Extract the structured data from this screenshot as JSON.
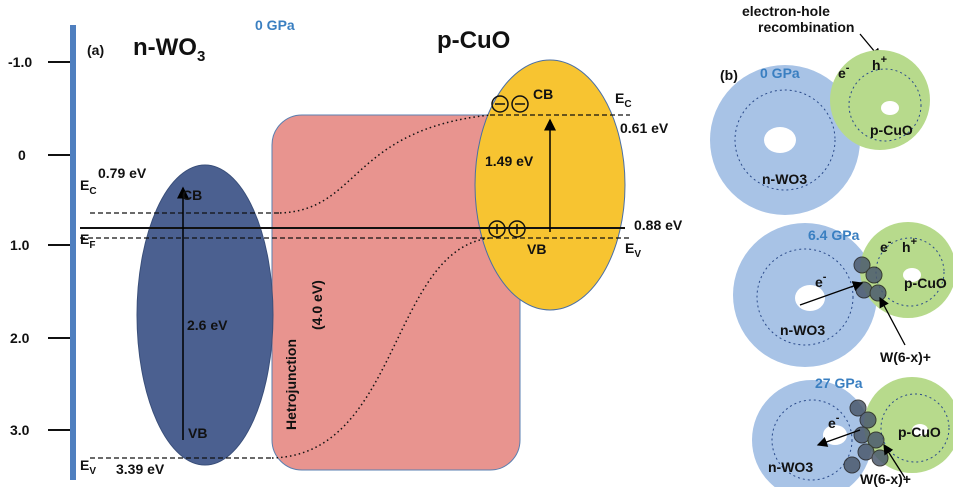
{
  "panel_a": {
    "label": "(a)",
    "pressure": "0 GPa",
    "energy_axis": {
      "ticks": [
        "-1.0",
        "0",
        "1.0",
        "2.0",
        "3.0"
      ]
    },
    "wo3": {
      "name": {
        "main": "n-WO",
        "sub": "3"
      },
      "cb": "CB",
      "vb": "VB",
      "gap": "2.6 eV",
      "ec": {
        "main": "E",
        "sub": "C"
      },
      "ec_value": "0.79 eV",
      "ef": {
        "main": "E",
        "sub": "F"
      },
      "ev": {
        "main": "E",
        "sub": "V"
      },
      "ev_value": "3.39 eV"
    },
    "junction": {
      "name": "Hetrojunction",
      "value": "(4.0 eV)"
    },
    "cuo": {
      "name": "p-CuO",
      "cb": "CB",
      "vb": "VB",
      "gap": "1.49 eV",
      "ec": {
        "main": "E",
        "sub": "C"
      },
      "ec_value": "0.61 eV",
      "ef_value": "0.88 eV",
      "ev": {
        "main": "E",
        "sub": "V"
      }
    }
  },
  "panel_b": {
    "label": "(b)",
    "annotation": "electron-hole recombination",
    "states": [
      {
        "pressure": "0 GPa",
        "electron": "e",
        "hole": "h",
        "small": "p-CuO",
        "large": "n-WO3"
      },
      {
        "pressure": "6.4 GPa",
        "electron": "e",
        "hole": "h",
        "electron2": "e",
        "small": "p-CuO",
        "large": "n-WO3",
        "ion": "W(6-x)+"
      },
      {
        "pressure": "27 GPa",
        "electron": "e",
        "small": "p-CuO",
        "large": "n-WO3",
        "ion": "W(6-x)+"
      }
    ]
  }
}
